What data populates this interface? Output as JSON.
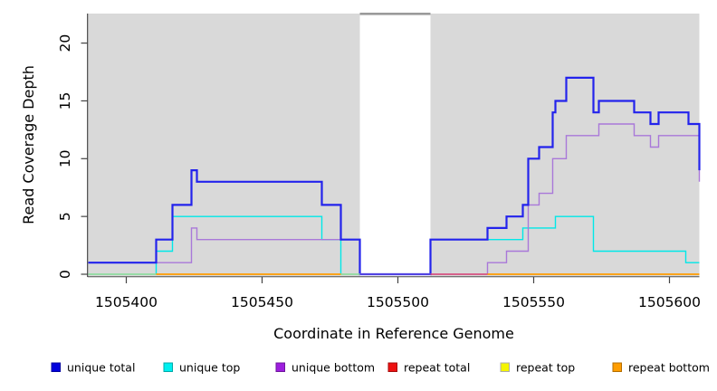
{
  "figure": {
    "page_background": "#ffffff",
    "panel_background": "#d9d9d9",
    "axis_color": "#444444",
    "text_color": "#000000"
  },
  "chart_data": {
    "type": "line",
    "line_style": "step",
    "title": "",
    "xlabel": "Coordinate in Reference Genome",
    "ylabel": "Read Coverage Depth",
    "xlim": [
      1505386,
      1505611
    ],
    "ylim": [
      0,
      22.5
    ],
    "x_ticks": [
      1505400,
      1505450,
      1505500,
      1505550,
      1505600
    ],
    "y_ticks": [
      0,
      5,
      10,
      15,
      20
    ],
    "grid": false,
    "legend_position": "bottom",
    "shaded_regions": [
      {
        "name": "repeat-region-left",
        "x0": 1505386,
        "x1": 1505486,
        "color": "#d9d9d9"
      },
      {
        "name": "repeat-region-right",
        "x0": 1505512,
        "x1": 1505611,
        "color": "#d9d9d9"
      }
    ],
    "gap_region": {
      "x0": 1505486,
      "x1": 1505512,
      "top_bar_color": "#9a9a9a"
    },
    "series": [
      {
        "name": "unique total",
        "color": "#2323ec",
        "width": 2.2,
        "draw_order": 3,
        "steps": [
          [
            1505386,
            1
          ],
          [
            1505411,
            3
          ],
          [
            1505417,
            6
          ],
          [
            1505424,
            9
          ],
          [
            1505426,
            8
          ],
          [
            1505472,
            6
          ],
          [
            1505479,
            3
          ],
          [
            1505486,
            0
          ],
          [
            1505512,
            3
          ],
          [
            1505533,
            4
          ],
          [
            1505540,
            5
          ],
          [
            1505546,
            6
          ],
          [
            1505548,
            10
          ],
          [
            1505552,
            11
          ],
          [
            1505557,
            14
          ],
          [
            1505558,
            15
          ],
          [
            1505562,
            17
          ],
          [
            1505572,
            14
          ],
          [
            1505574,
            15
          ],
          [
            1505587,
            14
          ],
          [
            1505593,
            13
          ],
          [
            1505596,
            14
          ],
          [
            1505607,
            13
          ],
          [
            1505611,
            9
          ]
        ]
      },
      {
        "name": "unique top",
        "color": "#00e8e8",
        "width": 1.4,
        "draw_order": 1,
        "steps": [
          [
            1505386,
            0
          ],
          [
            1505411,
            2
          ],
          [
            1505417,
            5
          ],
          [
            1505472,
            3
          ],
          [
            1505479,
            0
          ],
          [
            1505512,
            3
          ],
          [
            1505546,
            4
          ],
          [
            1505558,
            5
          ],
          [
            1505572,
            2
          ],
          [
            1505606,
            1
          ],
          [
            1505611,
            1
          ]
        ]
      },
      {
        "name": "unique bottom",
        "color": "#a978d9",
        "width": 1.4,
        "draw_order": 2,
        "steps": [
          [
            1505386,
            1
          ],
          [
            1505424,
            4
          ],
          [
            1505426,
            3
          ],
          [
            1505486,
            0
          ],
          [
            1505533,
            1
          ],
          [
            1505540,
            2
          ],
          [
            1505548,
            6
          ],
          [
            1505552,
            7
          ],
          [
            1505557,
            10
          ],
          [
            1505562,
            12
          ],
          [
            1505574,
            13
          ],
          [
            1505587,
            12
          ],
          [
            1505593,
            11
          ],
          [
            1505596,
            12
          ],
          [
            1505611,
            8
          ]
        ]
      },
      {
        "name": "repeat total",
        "color": "#ee1111",
        "width": 1.5,
        "draw": false,
        "steps": [
          [
            1505512,
            0
          ],
          [
            1505533,
            0
          ]
        ]
      },
      {
        "name": "repeat top",
        "color": "#f5f500",
        "width": 1.5,
        "draw": false,
        "steps": [
          [
            1505386,
            0
          ],
          [
            1505486,
            0
          ]
        ]
      },
      {
        "name": "repeat bottom",
        "color": "#ff9d00",
        "width": 1.8,
        "draw": false,
        "steps": [
          [
            1505411,
            0
          ],
          [
            1505611,
            0
          ]
        ]
      }
    ],
    "zero_line_segments": [
      {
        "x0": 1505386,
        "x1": 1505411,
        "color": "#a6db93",
        "w": 1.5,
        "note": "unique top + repeat top at 0"
      },
      {
        "x0": 1505411,
        "x1": 1505479,
        "color": "#ff9d00",
        "w": 1.8,
        "note": "repeat bottom at 0"
      },
      {
        "x0": 1505479,
        "x1": 1505486,
        "color": "#a6db93",
        "w": 1.5,
        "note": "unique top + repeat top at 0"
      },
      {
        "x0": 1505486,
        "x1": 1505512,
        "color": "#5a49e0",
        "w": 1.8,
        "note": "unique total + unique bottom at 0"
      },
      {
        "x0": 1505512,
        "x1": 1505533,
        "color": "#dd4a73",
        "w": 1.5,
        "note": "repeat total at 0"
      },
      {
        "x0": 1505533,
        "x1": 1505611,
        "color": "#ff9d00",
        "w": 1.8,
        "note": "repeat bottom at 0"
      }
    ]
  },
  "legend": {
    "items": [
      {
        "label": "unique total",
        "color": "#0000dd",
        "border": "#0000a0"
      },
      {
        "label": "unique top",
        "color": "#00f0f0",
        "border": "#00a8a8"
      },
      {
        "label": "unique bottom",
        "color": "#9d1ede",
        "border": "#6e159c"
      },
      {
        "label": "repeat total",
        "color": "#ee1111",
        "border": "#a50b0b"
      },
      {
        "label": "repeat top",
        "color": "#f5f500",
        "border": "#ababab"
      },
      {
        "label": "repeat bottom",
        "color": "#ff9d00",
        "border": "#b36d00"
      }
    ]
  }
}
